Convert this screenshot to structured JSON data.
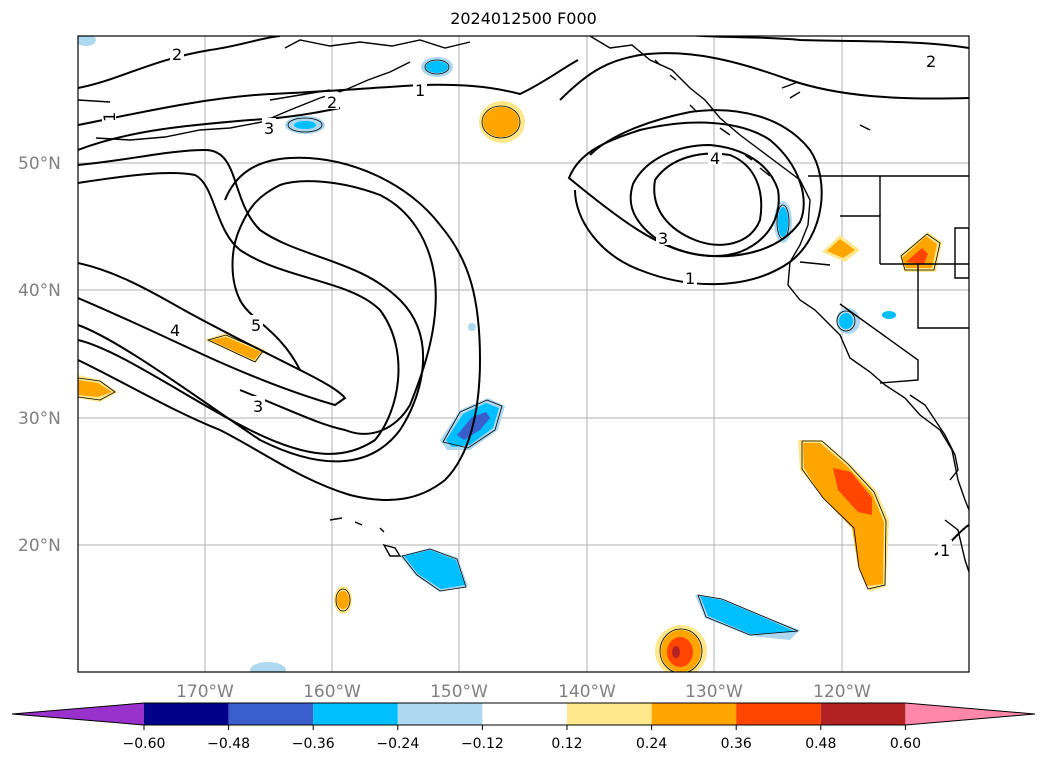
{
  "title": "2024012500 F000",
  "map": {
    "projection": "PlateCarree",
    "lon_range": [
      -180,
      -110
    ],
    "lat_range": [
      10,
      60
    ],
    "gridlines": true,
    "lat_labels": [
      "50°N",
      "40°N",
      "30°N",
      "20°N"
    ],
    "lon_labels": [
      "170°W",
      "160°W",
      "150°W",
      "140°W",
      "130°W",
      "120°W"
    ],
    "contour_labels": [
      "2",
      "1",
      "2",
      "3",
      "4",
      "5",
      "3",
      "1",
      "3",
      "4",
      "1",
      "2",
      "1"
    ]
  },
  "colorbar": {
    "ticks": [
      "−0.60",
      "−0.48",
      "−0.36",
      "−0.24",
      "−0.12",
      "0.12",
      "0.24",
      "0.36",
      "0.48",
      "0.60"
    ],
    "colors": [
      "#9932cc",
      "#00008b",
      "#3a5fcd",
      "#00bfff",
      "#add8f0",
      "#ffffff",
      "#ffe88c",
      "#ffa500",
      "#ff4500",
      "#b22222",
      "#ff88aa"
    ]
  }
}
